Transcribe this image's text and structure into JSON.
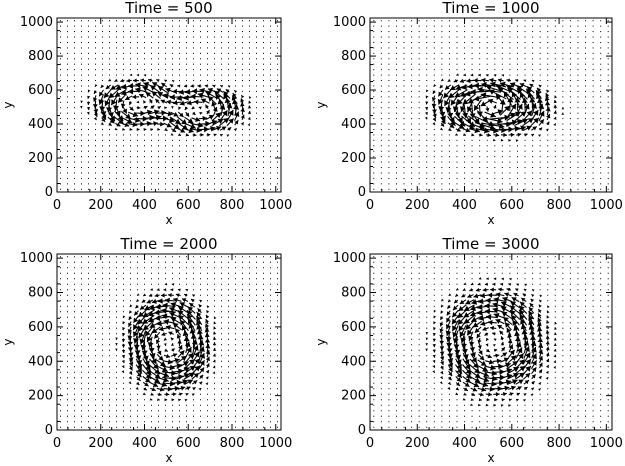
{
  "chart_data": [
    {
      "type": "quiver",
      "title": "Time = 500",
      "xlabel": "x",
      "ylabel": "y",
      "xlim": [
        0,
        1024
      ],
      "ylim": [
        0,
        1024
      ],
      "xticks": [
        "0",
        "200",
        "400",
        "600",
        "800",
        "1000"
      ],
      "yticks": [
        "0",
        "200",
        "400",
        "600",
        "800",
        "1000"
      ],
      "vortices": [
        {
          "cx": 370,
          "cy": 520,
          "rx": 230,
          "ry": 150,
          "sense": "counterclockwise",
          "strength": 1.0
        },
        {
          "cx": 650,
          "cy": 480,
          "rx": 230,
          "ry": 150,
          "sense": "counterclockwise",
          "strength": 1.0
        }
      ]
    },
    {
      "type": "quiver",
      "title": "Time = 1000",
      "xlabel": "x",
      "ylabel": "y",
      "xlim": [
        0,
        1024
      ],
      "ylim": [
        0,
        1024
      ],
      "xticks": [
        "0",
        "200",
        "400",
        "600",
        "800",
        "1000"
      ],
      "yticks": [
        "0",
        "200",
        "400",
        "600",
        "800",
        "1000"
      ],
      "vortices": [
        {
          "cx": 450,
          "cy": 510,
          "rx": 210,
          "ry": 170,
          "sense": "counterclockwise",
          "strength": 1.0
        },
        {
          "cx": 580,
          "cy": 490,
          "rx": 210,
          "ry": 170,
          "sense": "counterclockwise",
          "strength": 1.0
        }
      ]
    },
    {
      "type": "quiver",
      "title": "Time = 2000",
      "xlabel": "x",
      "ylabel": "y",
      "xlim": [
        0,
        1024
      ],
      "ylim": [
        0,
        1024
      ],
      "xticks": [
        "0",
        "200",
        "400",
        "600",
        "800",
        "1000"
      ],
      "yticks": [
        "0",
        "200",
        "400",
        "600",
        "800",
        "1000"
      ],
      "vortices": [
        {
          "cx": 510,
          "cy": 500,
          "rx": 210,
          "ry": 310,
          "sense": "counterclockwise",
          "strength": 1.1
        }
      ]
    },
    {
      "type": "quiver",
      "title": "Time = 3000",
      "xlabel": "x",
      "ylabel": "y",
      "xlim": [
        0,
        1024
      ],
      "ylim": [
        0,
        1024
      ],
      "xticks": [
        "0",
        "200",
        "400",
        "600",
        "800",
        "1000"
      ],
      "yticks": [
        "0",
        "200",
        "400",
        "600",
        "800",
        "1000"
      ],
      "vortices": [
        {
          "cx": 520,
          "cy": 510,
          "rx": 250,
          "ry": 340,
          "sense": "counterclockwise",
          "strength": 1.0
        }
      ]
    }
  ]
}
